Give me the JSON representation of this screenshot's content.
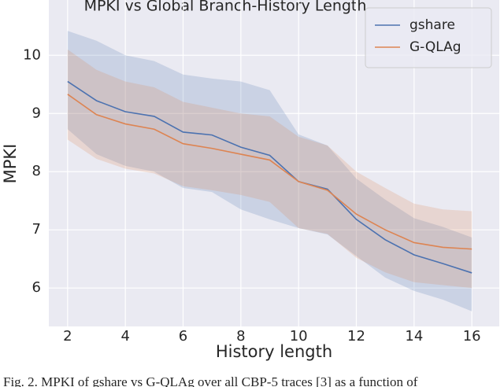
{
  "chart_data": {
    "type": "line",
    "title": "MPKI vs Global Branch-History Length",
    "xlabel": "History length",
    "ylabel": "MPKI",
    "x": [
      2,
      3,
      4,
      5,
      6,
      7,
      8,
      9,
      10,
      11,
      12,
      13,
      14,
      15,
      16
    ],
    "series": [
      {
        "name": "gshare",
        "color": "#4c72b0",
        "values": [
          9.55,
          9.22,
          9.03,
          8.95,
          8.68,
          8.63,
          8.42,
          8.28,
          7.83,
          7.7,
          7.18,
          6.83,
          6.57,
          6.42,
          6.26
        ],
        "upper": [
          10.42,
          10.25,
          10.0,
          9.9,
          9.67,
          9.6,
          9.55,
          9.4,
          8.64,
          8.45,
          7.88,
          7.52,
          7.2,
          7.05,
          6.87
        ],
        "lower": [
          8.73,
          8.3,
          8.1,
          8.0,
          7.72,
          7.65,
          7.35,
          7.18,
          7.03,
          6.92,
          6.55,
          6.18,
          5.95,
          5.8,
          5.6
        ]
      },
      {
        "name": "G-QLAg",
        "color": "#dd8452",
        "values": [
          9.33,
          8.98,
          8.82,
          8.73,
          8.48,
          8.4,
          8.3,
          8.2,
          7.83,
          7.68,
          7.27,
          7.0,
          6.78,
          6.7,
          6.67
        ],
        "upper": [
          10.1,
          9.75,
          9.55,
          9.45,
          9.2,
          9.1,
          9.0,
          8.95,
          8.6,
          8.45,
          8.0,
          7.72,
          7.45,
          7.35,
          7.32
        ],
        "lower": [
          8.55,
          8.22,
          8.05,
          7.97,
          7.75,
          7.68,
          7.6,
          7.48,
          7.03,
          6.93,
          6.52,
          6.27,
          6.1,
          6.05,
          6.0
        ]
      }
    ],
    "xlim": [
      1.35,
      16.95
    ],
    "ylim": [
      5.34,
      10.95
    ],
    "xticks": [
      2,
      4,
      6,
      8,
      10,
      12,
      14,
      16
    ],
    "yticks": [
      6,
      7,
      8,
      9,
      10
    ],
    "grid": true,
    "legend": "upper right",
    "caption": "Fig. 2.  MPKI of gshare vs G-QLAg over all CBP-5 traces [3] as a function of"
  }
}
